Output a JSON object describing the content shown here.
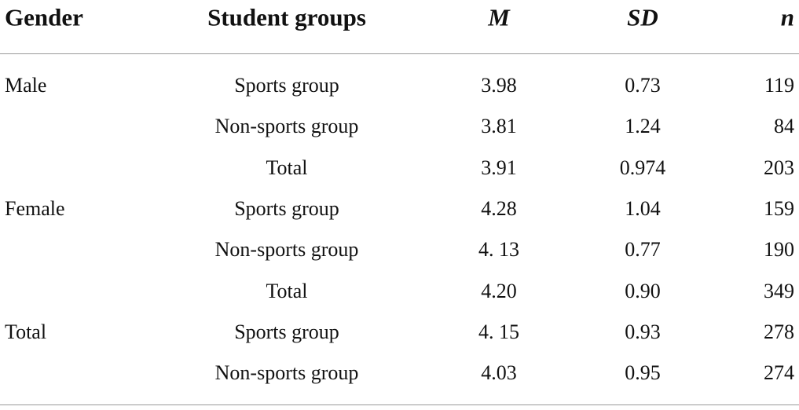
{
  "table": {
    "header": [
      "Gender",
      "Student groups",
      "M",
      "SD",
      "n"
    ],
    "groups": [
      {
        "gender": "Male",
        "rows": [
          [
            "Sports group",
            "3.98",
            "0.73",
            "119"
          ],
          [
            "Non-sports group",
            "3.81",
            "1.24",
            "84"
          ],
          [
            "Total",
            "3.91",
            "0.974",
            "203"
          ]
        ]
      },
      {
        "gender": "Female",
        "rows": [
          [
            "Sports group",
            "4.28",
            "1.04",
            "159"
          ],
          [
            "Non-sports group",
            "4. 13",
            "0.77",
            "190"
          ],
          [
            "Total",
            "4.20",
            "0.90",
            "349"
          ]
        ]
      },
      {
        "gender": "Total",
        "rows": [
          [
            "Sports group",
            "4. 15",
            "0.93",
            "278"
          ],
          [
            "Non-sports group",
            "4.03",
            "0.95",
            "274"
          ]
        ]
      }
    ]
  }
}
